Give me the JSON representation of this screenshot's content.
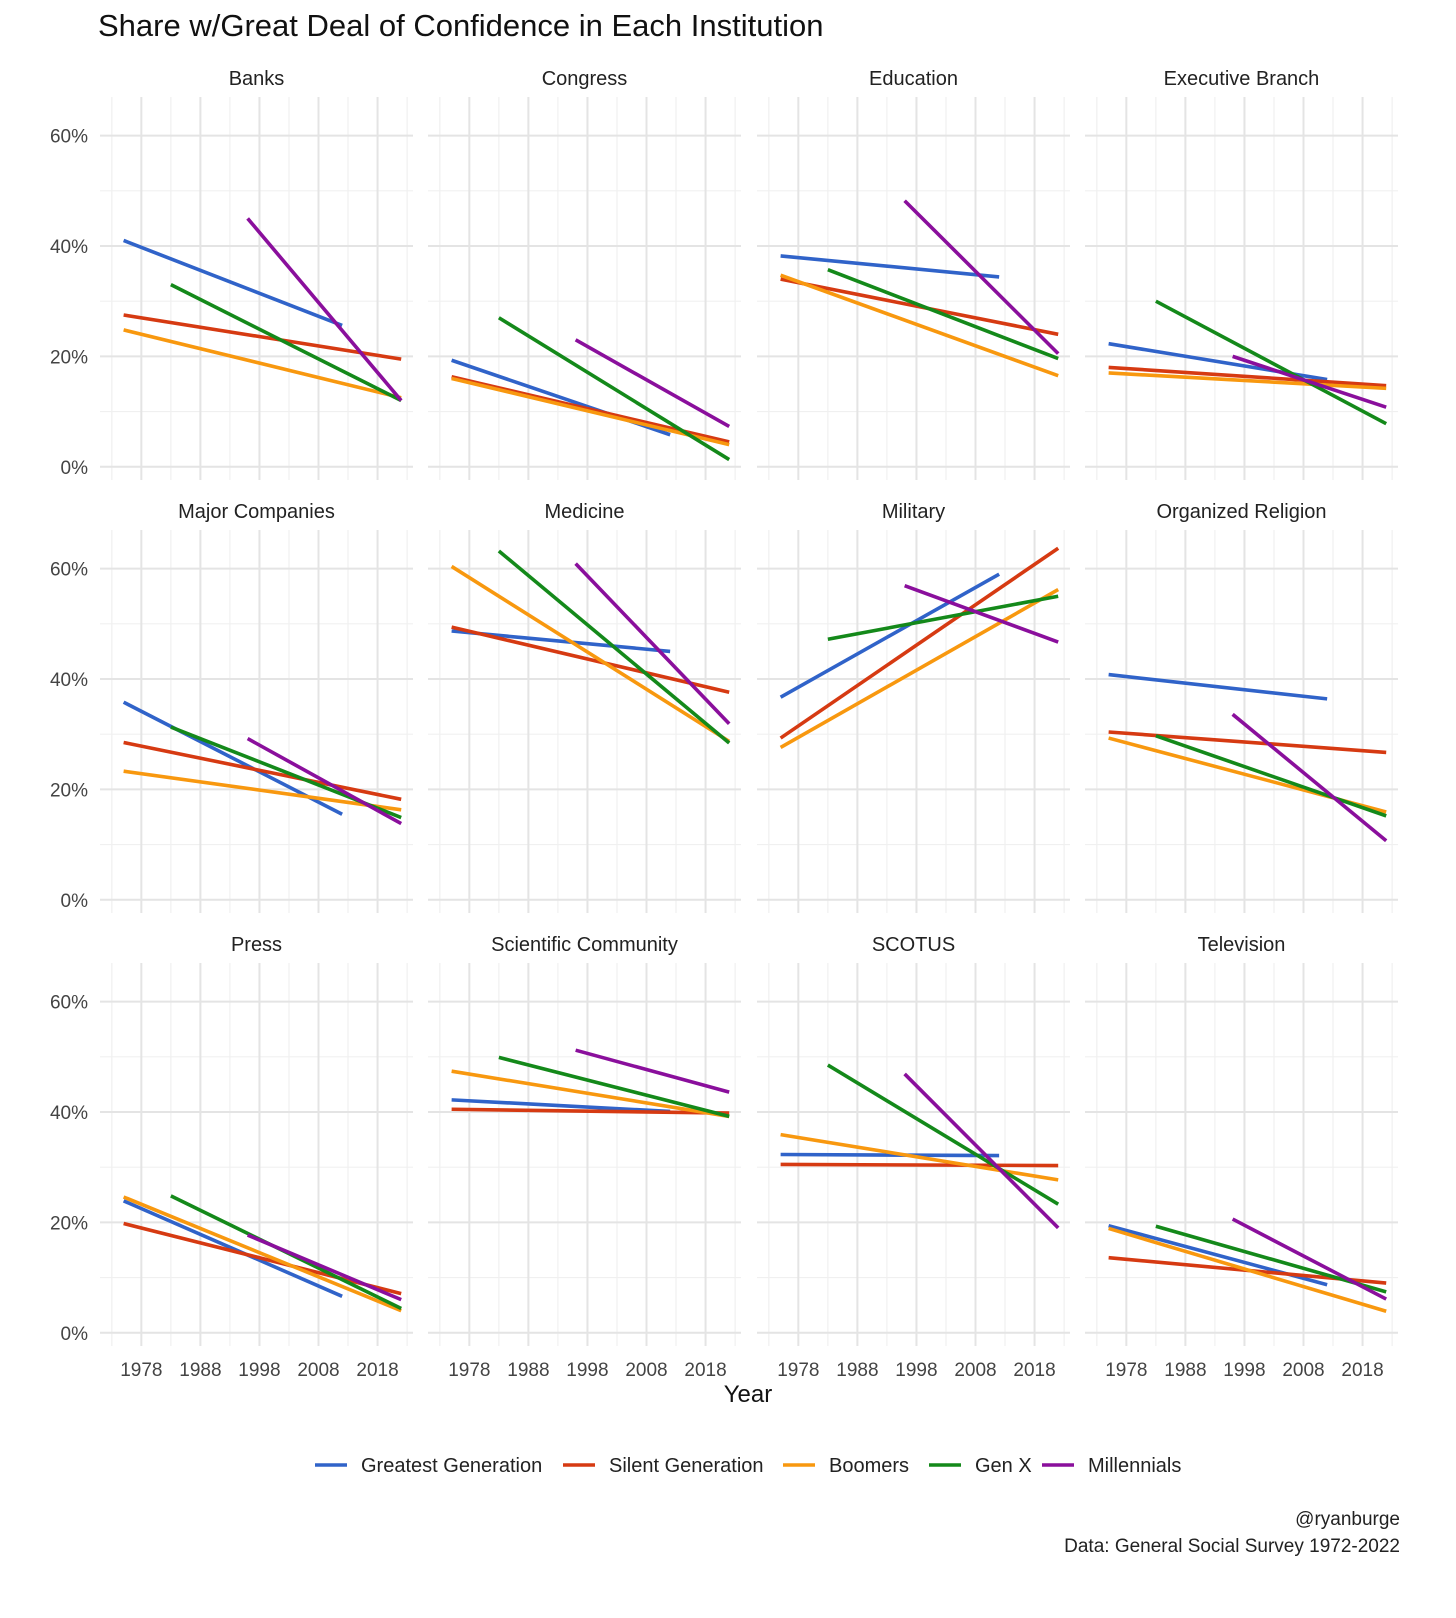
{
  "chart_data": {
    "type": "line",
    "title": "Share w/Great Deal of Confidence in Each Institution",
    "xlabel": "Year",
    "ylabel": "",
    "x_ticks": [
      1978,
      1988,
      1998,
      2008,
      2018
    ],
    "y_ticks": [
      0,
      20,
      40,
      60
    ],
    "y_tick_labels": [
      "0%",
      "20%",
      "40%",
      "60%"
    ],
    "xlim": [
      1971,
      2024
    ],
    "ylim": [
      -2.4,
      67
    ],
    "grid": true,
    "legend_position": "bottom",
    "series_meta": [
      {
        "name": "Greatest Generation",
        "color": "#3063c9",
        "x": [
          1975,
          2012
        ]
      },
      {
        "name": "Silent Generation",
        "color": "#d63a12",
        "x": [
          1975,
          2022
        ]
      },
      {
        "name": "Boomers",
        "color": "#f8980f",
        "x": [
          1975,
          2022
        ]
      },
      {
        "name": "Gen X",
        "color": "#14891a",
        "x": [
          1983,
          2022
        ]
      },
      {
        "name": "Millennials",
        "color": "#8a0f9c",
        "x": [
          1996,
          2022
        ]
      }
    ],
    "panels": [
      {
        "title": "Banks",
        "series": [
          [
            41.0,
            25.6
          ],
          [
            27.5,
            19.5
          ],
          [
            24.8,
            12.5
          ],
          [
            33.0,
            12.0
          ],
          [
            45.0,
            12.0
          ]
        ]
      },
      {
        "title": "Congress",
        "series": [
          [
            19.3,
            5.8
          ],
          [
            16.3,
            4.5
          ],
          [
            16.0,
            4.0
          ],
          [
            27.0,
            1.3
          ],
          [
            23.0,
            7.3
          ]
        ]
      },
      {
        "title": "Education",
        "series": [
          [
            38.2,
            34.4
          ],
          [
            34.0,
            24.0
          ],
          [
            34.7,
            16.5
          ],
          [
            35.7,
            19.6
          ],
          [
            48.2,
            20.5
          ]
        ]
      },
      {
        "title": "Executive Branch",
        "series": [
          [
            22.3,
            15.8
          ],
          [
            18.0,
            14.7
          ],
          [
            17.0,
            14.2
          ],
          [
            30.0,
            7.8
          ],
          [
            20.0,
            10.8
          ]
        ]
      },
      {
        "title": "Major Companies",
        "series": [
          [
            35.8,
            15.5
          ],
          [
            28.5,
            18.2
          ],
          [
            23.3,
            16.3
          ],
          [
            31.3,
            14.9
          ],
          [
            29.2,
            13.8
          ]
        ]
      },
      {
        "title": "Medicine",
        "series": [
          [
            48.7,
            45.0
          ],
          [
            49.4,
            37.6
          ],
          [
            60.4,
            28.7
          ],
          [
            63.2,
            28.4
          ],
          [
            60.9,
            31.9
          ]
        ]
      },
      {
        "title": "Military",
        "series": [
          [
            36.7,
            59.0
          ],
          [
            29.3,
            63.7
          ],
          [
            27.6,
            56.2
          ],
          [
            47.2,
            55.0
          ],
          [
            56.9,
            46.7
          ]
        ]
      },
      {
        "title": "Organized Religion",
        "series": [
          [
            40.8,
            36.4
          ],
          [
            30.4,
            26.7
          ],
          [
            29.3,
            15.9
          ],
          [
            29.7,
            15.2
          ],
          [
            33.6,
            10.7
          ]
        ]
      },
      {
        "title": "Press",
        "series": [
          [
            23.9,
            6.6
          ],
          [
            19.8,
            7.1
          ],
          [
            24.6,
            4.0
          ],
          [
            24.8,
            4.4
          ],
          [
            17.7,
            6.0
          ]
        ]
      },
      {
        "title": "Scientific Community",
        "series": [
          [
            42.2,
            40.1
          ],
          [
            40.5,
            39.8
          ],
          [
            47.4,
            39.2
          ],
          [
            49.9,
            39.2
          ],
          [
            51.2,
            43.6
          ]
        ]
      },
      {
        "title": "SCOTUS",
        "series": [
          [
            32.3,
            32.1
          ],
          [
            30.5,
            30.3
          ],
          [
            35.9,
            27.7
          ],
          [
            48.5,
            23.3
          ],
          [
            46.9,
            19.0
          ]
        ]
      },
      {
        "title": "Television",
        "series": [
          [
            19.4,
            8.7
          ],
          [
            13.6,
            9.0
          ],
          [
            18.9,
            3.9
          ],
          [
            19.3,
            7.4
          ],
          [
            20.6,
            6.1
          ]
        ]
      }
    ]
  },
  "caption": {
    "handle": "@ryanburge",
    "source": "Data: General Social Survey 1972-2022"
  }
}
